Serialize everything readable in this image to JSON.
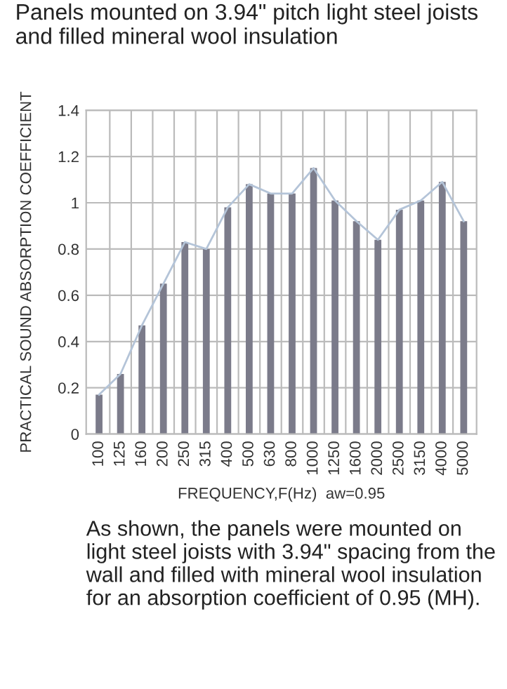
{
  "chart_data": {
    "type": "bar",
    "title": "Panels mounted on 3.94\" pitch light steel joists and filled mineral wool insulation",
    "xlabel": "FREQUENCY,F(Hz)  aw=0.95",
    "ylabel": "PRACTICAL SOUND ABSORPTION COEFFICIENT",
    "categories": [
      "100",
      "125",
      "160",
      "200",
      "250",
      "315",
      "400",
      "500",
      "630",
      "800",
      "1000",
      "1250",
      "1600",
      "2000",
      "2500",
      "3150",
      "4000",
      "5000"
    ],
    "series": [
      {
        "color": "#7b7b8a",
        "values": [
          0.17,
          0.26,
          0.47,
          0.65,
          0.83,
          0.8,
          0.98,
          1.08,
          1.04,
          1.04,
          1.15,
          1.01,
          0.92,
          0.84,
          0.97,
          1.01,
          1.09,
          0.92
        ]
      },
      {
        "type": "line",
        "color": "#b4c4d8",
        "values": [
          0.17,
          0.26,
          0.47,
          0.65,
          0.83,
          0.8,
          0.98,
          1.08,
          1.04,
          1.04,
          1.15,
          1.01,
          0.92,
          0.84,
          0.97,
          1.01,
          1.09,
          0.92
        ]
      }
    ],
    "ylim": [
      0,
      1.4
    ],
    "yticks": [
      0,
      0.2,
      0.4,
      0.6,
      0.8,
      1,
      1.2,
      1.4
    ],
    "grid": true,
    "annotations": [
      "As shown, the panels were mounted on light steel joists with 3.94\" spacing from the wall and filled with mineral wool insulation for an absorption coefficient of 0.95 (MH)."
    ]
  }
}
